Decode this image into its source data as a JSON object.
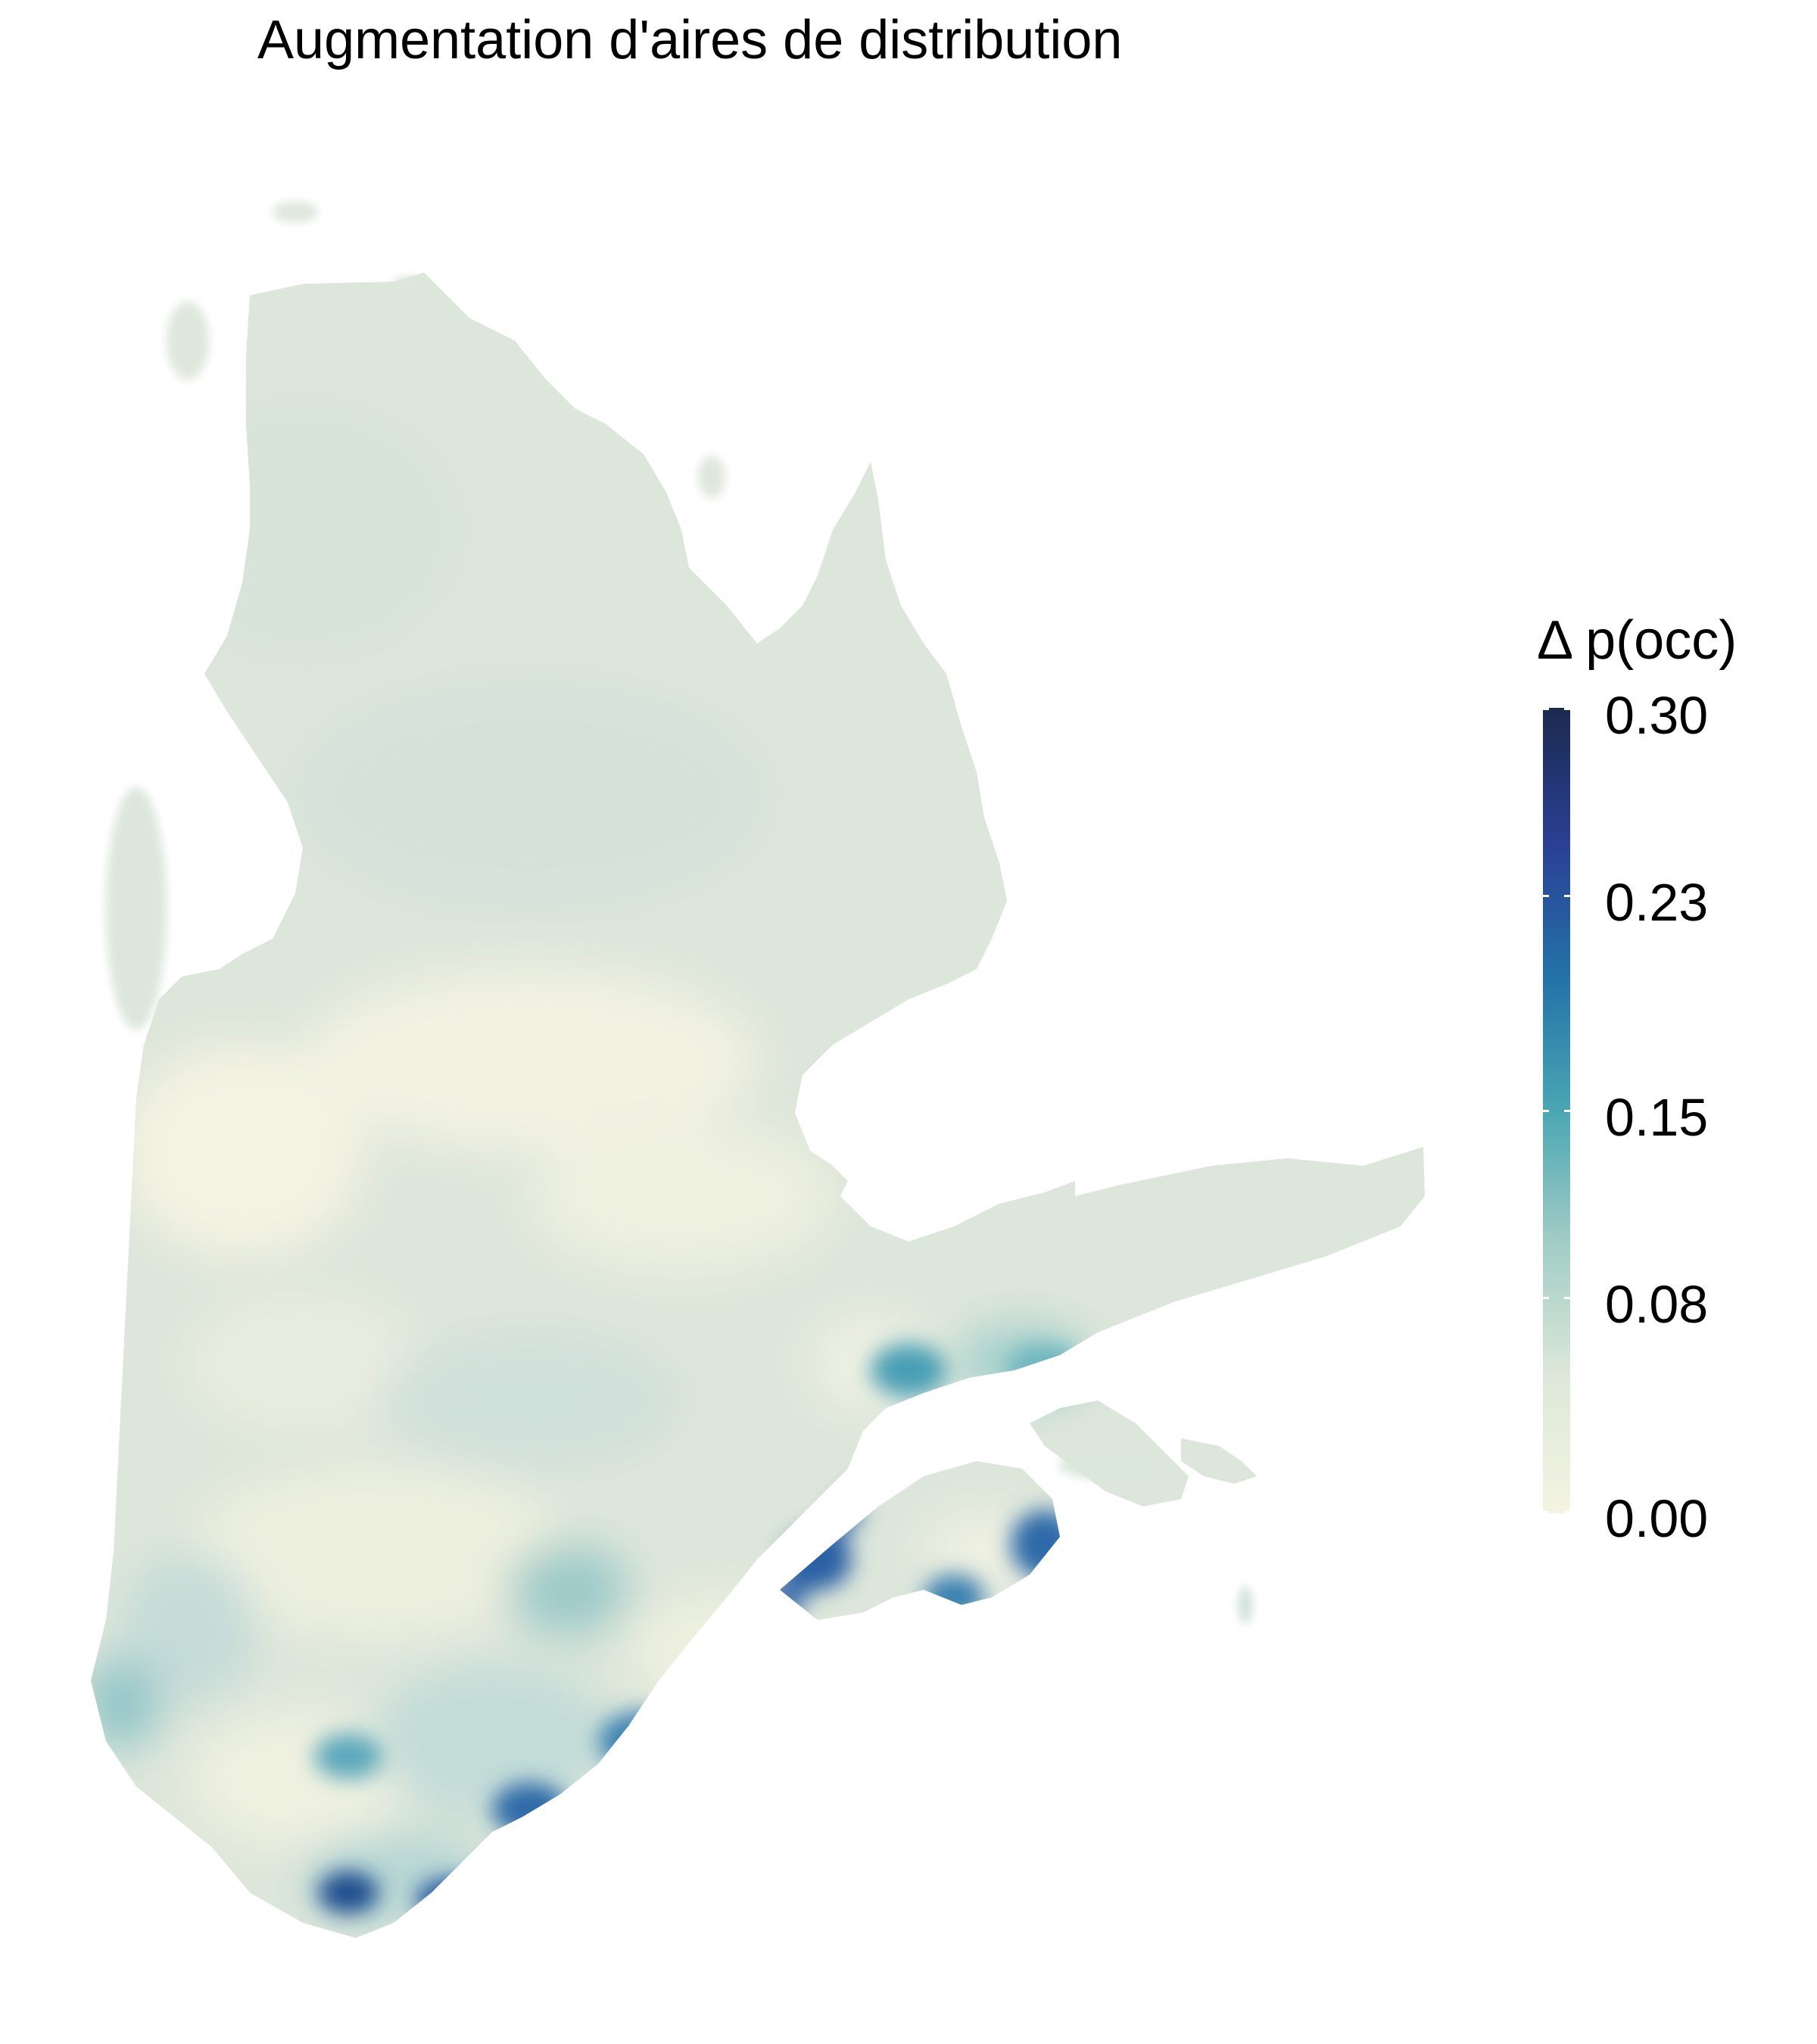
{
  "title": "Augmentation d'aires de distribution",
  "legend": {
    "title": "Δ p(occ)",
    "ticks": [
      "0.30",
      "0.23",
      "0.15",
      "0.08",
      "0.00"
    ],
    "scale_range": [
      0.0,
      0.3
    ],
    "colors": [
      "#f5f4e2",
      "#dde8d9",
      "#a3cdc6",
      "#4aa6b3",
      "#2372a8",
      "#2a3f93",
      "#1c2a4f"
    ]
  }
}
